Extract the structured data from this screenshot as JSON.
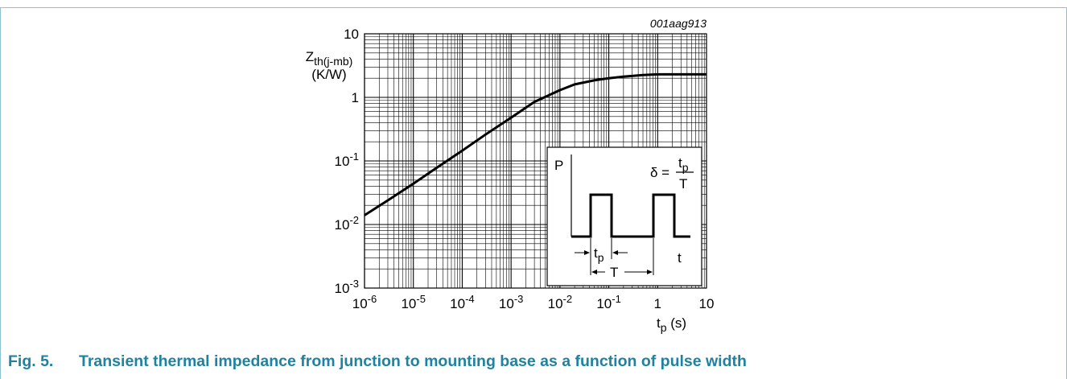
{
  "figure": {
    "number": "Fig. 5.",
    "caption": "Transient thermal impedance from junction to mounting base as a function of pulse width",
    "reference_id": "001aag913",
    "accent_color": "#1f82a0",
    "frame_color": "#8fc2d0"
  },
  "chart_data": {
    "type": "line",
    "x_scale": "log",
    "y_scale": "log",
    "xlim": [
      1e-06,
      10
    ],
    "ylim": [
      0.001,
      10
    ],
    "grid": true,
    "x_ticks": [
      1e-06,
      1e-05,
      0.0001,
      0.001,
      0.01,
      0.1,
      1,
      10
    ],
    "y_ticks": [
      0.001,
      0.01,
      0.1,
      1,
      10
    ],
    "x_tick_labels": [
      {
        "base": "10",
        "exp": "-6"
      },
      {
        "base": "10",
        "exp": "-5"
      },
      {
        "base": "10",
        "exp": "-4"
      },
      {
        "base": "10",
        "exp": "-3"
      },
      {
        "base": "10",
        "exp": "-2"
      },
      {
        "base": "10",
        "exp": "-1"
      },
      {
        "base": "1",
        "exp": ""
      },
      {
        "base": "10",
        "exp": ""
      }
    ],
    "y_tick_labels": [
      {
        "base": "10",
        "exp": "-3"
      },
      {
        "base": "10",
        "exp": "-2"
      },
      {
        "base": "10",
        "exp": "-1"
      },
      {
        "base": "1",
        "exp": ""
      },
      {
        "base": "10",
        "exp": ""
      }
    ],
    "xlabel": {
      "main": "t",
      "sub": "p",
      "unit": " (s)"
    },
    "ylabel": {
      "main": "Z",
      "sub": "th(j-mb)",
      "unit": "(K/W)"
    },
    "series": [
      {
        "x": [
          1e-06,
          3e-06,
          1e-05,
          3e-05,
          0.0001,
          0.0003,
          0.001,
          0.003,
          0.01,
          0.02,
          0.05,
          0.1,
          0.2,
          0.5,
          1,
          2,
          5,
          10
        ],
        "y": [
          0.014,
          0.024,
          0.044,
          0.078,
          0.145,
          0.26,
          0.48,
          0.85,
          1.3,
          1.6,
          1.85,
          2.0,
          2.12,
          2.25,
          2.3,
          2.3,
          2.3,
          2.3
        ]
      }
    ],
    "inset": {
      "p_label": "P",
      "t_label": "t",
      "tp_main": "t",
      "tp_sub": "p",
      "T_label": "T",
      "delta_lhs": "δ =",
      "delta_num_main": "t",
      "delta_num_sub": "p",
      "delta_den": "T"
    }
  }
}
